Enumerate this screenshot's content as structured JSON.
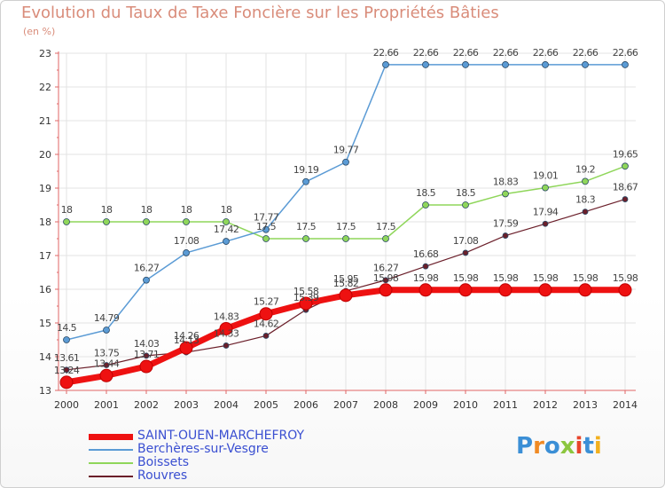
{
  "title": "Evolution du Taux de Taxe Foncière sur les Propriétés Bâties",
  "subtitle": "(en %)",
  "logo": {
    "text": "Proxiti",
    "colors": [
      "#3b8fd6",
      "#f08a24",
      "#3b8fd6",
      "#8cc63f",
      "#e8452c",
      "#3b8fd6",
      "#f2b01e"
    ]
  },
  "chart_data": {
    "type": "line",
    "x": [
      "2000",
      "2001",
      "2002",
      "2003",
      "2004",
      "2005",
      "2006",
      "2007",
      "2008",
      "2009",
      "2010",
      "2011",
      "2012",
      "2013",
      "2014"
    ],
    "ylim": [
      13,
      23
    ],
    "yticks": [
      "13",
      "14",
      "15",
      "16",
      "17",
      "18",
      "19",
      "20",
      "21",
      "22",
      "23"
    ],
    "grid": true,
    "legend_position": "bottom-left",
    "series": [
      {
        "name": "Rouvres",
        "color": "#6b1f2a",
        "width": 1.2,
        "marker_r": 3,
        "values": [
          13.61,
          13.75,
          14.03,
          14.13,
          14.33,
          14.62,
          15.39,
          15.95,
          16.27,
          16.68,
          17.08,
          17.59,
          17.94,
          18.3,
          18.67
        ],
        "labels": [
          "13.61",
          "13.75",
          "14.03",
          "14.13",
          "14.33",
          "14.62",
          "15.39",
          "15.95",
          "16.27",
          "16.68",
          "17.08",
          "17.59",
          "17.94",
          "18.3",
          "18.67"
        ]
      },
      {
        "name": "Boissets",
        "color": "#8fd65a",
        "width": 1.5,
        "marker_r": 3.5,
        "values": [
          18,
          18,
          18,
          18,
          18,
          17.5,
          17.5,
          17.5,
          17.5,
          18.5,
          18.5,
          18.83,
          19.01,
          19.2,
          19.65
        ],
        "labels": [
          "18",
          "18",
          "18",
          "18",
          "18",
          "17.5",
          "17.5",
          "17.5",
          "17.5",
          "18.5",
          "18.5",
          "18.83",
          "19.01",
          "19.2",
          "19.65"
        ]
      },
      {
        "name": "Berchères-sur-Vesgre",
        "color": "#5b9bd5",
        "width": 1.5,
        "marker_r": 3.5,
        "values": [
          14.5,
          14.79,
          16.27,
          17.08,
          17.42,
          17.77,
          19.19,
          19.77,
          22.66,
          22.66,
          22.66,
          22.66,
          22.66,
          22.66,
          22.66
        ],
        "labels": [
          "14.5",
          "14.79",
          "16.27",
          "17.08",
          "17.42",
          "17.77",
          "19.19",
          "19.77",
          "22.66",
          "22.66",
          "22.66",
          "22.66",
          "22.66",
          "22.66",
          "22.66"
        ]
      },
      {
        "name": "SAINT-OUEN-MARCHEFROY",
        "color": "#ee1111",
        "width": 7,
        "marker_r": 7,
        "values": [
          13.24,
          13.44,
          13.71,
          14.26,
          14.83,
          15.27,
          15.58,
          15.82,
          15.98,
          15.98,
          15.98,
          15.98,
          15.98,
          15.98,
          15.98
        ],
        "labels": [
          "13.24",
          "13.44",
          "13.71",
          "14.26",
          "14.83",
          "15.27",
          "15.58",
          "15.82",
          "15.98",
          "15.98",
          "15.98",
          "15.98",
          "15.98",
          "15.98",
          "15.98"
        ]
      }
    ],
    "legend_order": [
      "SAINT-OUEN-MARCHEFROY",
      "Berchères-sur-Vesgre",
      "Boissets",
      "Rouvres"
    ]
  }
}
